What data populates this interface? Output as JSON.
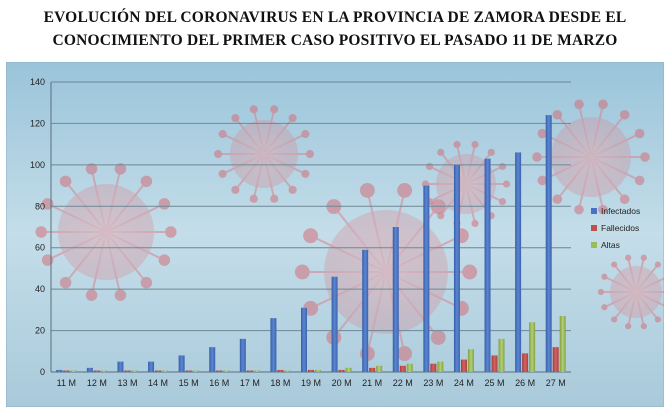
{
  "title": {
    "line1": "EVOLUCIÓN DEL CORONAVIRUS EN LA PROVINCIA DE ZAMORA DESDE EL",
    "line2": "CONOCIMIENTO DEL PRIMER CASO POSITIVO EL PASADO 11 DE MARZO"
  },
  "chart_data": {
    "type": "bar",
    "title": "EVOLUCIÓN DEL CORONAVIRUS EN LA PROVINCIA DE ZAMORA DESDE EL CONOCIMIENTO DEL PRIMER CASO POSITIVO EL PASADO 11 DE MARZO",
    "xlabel": "",
    "ylabel": "",
    "ylim": [
      0,
      140
    ],
    "yticks": [
      0,
      20,
      40,
      60,
      80,
      100,
      120,
      140
    ],
    "grid": true,
    "legend_position": "right",
    "categories": [
      "11 M",
      "12 M",
      "13 M",
      "14 M",
      "15 M",
      "16 M",
      "17 M",
      "18 M",
      "19 M",
      "20 M",
      "21 M",
      "22 M",
      "23 M",
      "24 M",
      "25 M",
      "26 M",
      "27 M"
    ],
    "series": [
      {
        "name": "Infectados",
        "color": "#4a72c4",
        "values": [
          1,
          2,
          5,
          5,
          8,
          12,
          16,
          26,
          31,
          46,
          59,
          70,
          90,
          100,
          103,
          106,
          124
        ]
      },
      {
        "name": "Fallecidos",
        "color": "#c0504d",
        "values": [
          0,
          0,
          0,
          0,
          0,
          0,
          0,
          1,
          1,
          1,
          2,
          3,
          4,
          6,
          8,
          9,
          12
        ]
      },
      {
        "name": "Altas",
        "color": "#9bbb59",
        "values": [
          0,
          0,
          0,
          0,
          0,
          0,
          0,
          0,
          1,
          2,
          3,
          4,
          5,
          11,
          16,
          24,
          27
        ]
      }
    ]
  }
}
